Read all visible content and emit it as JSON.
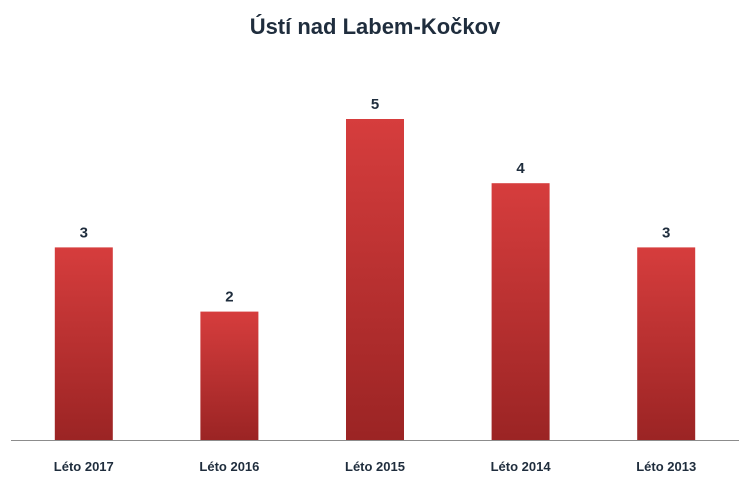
{
  "chart_data": {
    "type": "bar",
    "title": "Ústí nad Labem-Kočkov",
    "categories": [
      "Léto 2017",
      "Léto 2016",
      "Léto 2015",
      "Léto 2014",
      "Léto 2013"
    ],
    "values": [
      3,
      2,
      5,
      4,
      3
    ],
    "xlabel": "",
    "ylabel": "",
    "ylim": [
      0,
      5
    ],
    "grid": false,
    "legend": "none",
    "colors": {
      "bar_top": "#d63d3d",
      "bar_bottom": "#9b2424",
      "axis": "#8c8c8c",
      "text": "#1f2d3d"
    }
  }
}
